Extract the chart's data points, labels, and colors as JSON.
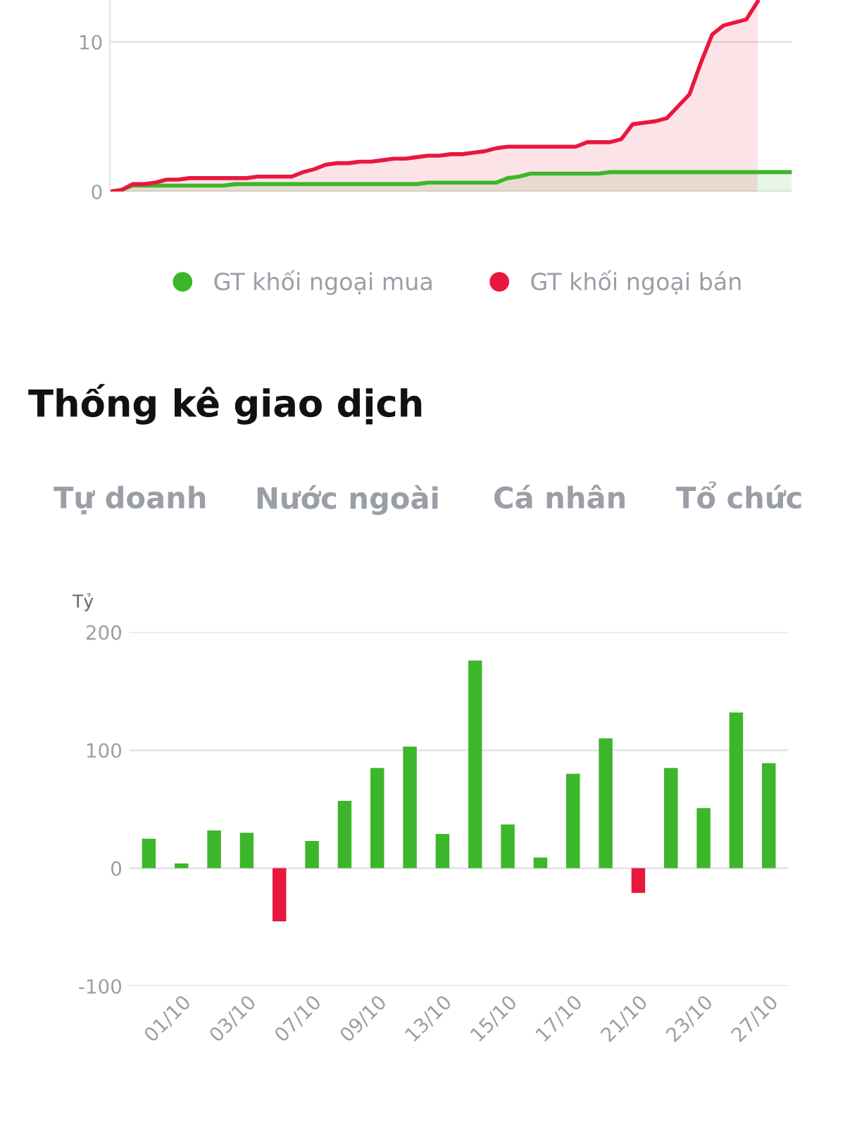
{
  "chart_data": [
    {
      "type": "area",
      "categories": [
        null,
        null,
        null,
        null,
        null,
        null,
        null,
        null,
        null,
        null,
        null,
        null,
        null,
        null,
        null,
        null,
        null,
        null,
        null,
        null,
        null,
        null,
        null,
        null,
        null,
        null,
        null,
        null,
        null,
        null,
        null,
        null,
        null,
        null,
        null,
        null,
        null,
        null,
        null,
        null,
        null,
        null,
        null,
        null,
        null,
        null,
        null,
        null,
        null,
        null,
        null,
        null,
        null,
        null,
        null,
        null,
        null,
        null,
        null,
        null,
        null
      ],
      "series": [
        {
          "name": "GT khối ngoại mua",
          "color": "#3cb62a",
          "values": [
            0,
            0.1,
            0.4,
            0.4,
            0.4,
            0.4,
            0.4,
            0.4,
            0.4,
            0.4,
            0.4,
            0.5,
            0.5,
            0.5,
            0.5,
            0.5,
            0.5,
            0.5,
            0.5,
            0.5,
            0.5,
            0.5,
            0.5,
            0.5,
            0.5,
            0.5,
            0.5,
            0.5,
            0.6,
            0.6,
            0.6,
            0.6,
            0.6,
            0.6,
            0.6,
            0.9,
            1.0,
            1.2,
            1.2,
            1.2,
            1.2,
            1.2,
            1.2,
            1.2,
            1.3,
            1.3,
            1.3,
            1.3,
            1.3,
            1.3,
            1.3,
            1.3,
            1.3,
            1.3,
            1.3,
            1.3,
            1.3,
            1.3,
            1.3,
            1.3,
            1.3
          ]
        },
        {
          "name": "GT khối ngoại bán",
          "color": "#e8173f",
          "values": [
            0,
            0.1,
            0.5,
            0.5,
            0.6,
            0.8,
            0.8,
            0.9,
            0.9,
            0.9,
            0.9,
            0.9,
            0.9,
            1.0,
            1.0,
            1.0,
            1.0,
            1.3,
            1.5,
            1.8,
            1.9,
            1.9,
            2.0,
            2.0,
            2.1,
            2.2,
            2.2,
            2.3,
            2.4,
            2.4,
            2.5,
            2.5,
            2.6,
            2.7,
            2.9,
            3.0,
            3.0,
            3.0,
            3.0,
            3.0,
            3.0,
            3.0,
            3.3,
            3.3,
            3.3,
            3.5,
            4.5,
            4.6,
            4.7,
            4.9,
            5.7,
            6.5,
            8.6,
            10.5,
            11.1,
            11.3,
            11.5,
            12.7,
            null,
            null,
            null
          ]
        }
      ],
      "ylim": [
        0,
        12.8
      ],
      "yticks": [
        0,
        10
      ],
      "grid": "y",
      "legend": "bottom"
    },
    {
      "type": "bar",
      "title": "Thống kê giao dịch",
      "ylabel": "Tỷ",
      "annotations": [
        "Tự doanh",
        "Nước ngoài",
        "Cá nhân",
        "Tổ chức"
      ],
      "categories": [
        null,
        "01/10",
        null,
        "03/10",
        null,
        "07/10",
        null,
        "09/10",
        null,
        "13/10",
        null,
        "15/10",
        null,
        "17/10",
        null,
        "21/10",
        null,
        "23/10",
        null,
        "27/10"
      ],
      "values": [
        25,
        4,
        32,
        30,
        -45,
        23,
        57,
        85,
        103,
        29,
        176,
        37,
        9,
        80,
        110,
        -21,
        85,
        51,
        132,
        89
      ],
      "colors": [
        "#3cb62a",
        "#3cb62a",
        "#3cb62a",
        "#3cb62a",
        "#e8173f",
        "#3cb62a",
        "#3cb62a",
        "#3cb62a",
        "#3cb62a",
        "#3cb62a",
        "#3cb62a",
        "#3cb62a",
        "#3cb62a",
        "#3cb62a",
        "#3cb62a",
        "#e8173f",
        "#3cb62a",
        "#3cb62a",
        "#3cb62a",
        "#3cb62a"
      ],
      "ylim": [
        -100,
        200
      ],
      "yticks": [
        -100,
        0,
        100,
        200
      ],
      "grid": "y"
    }
  ]
}
